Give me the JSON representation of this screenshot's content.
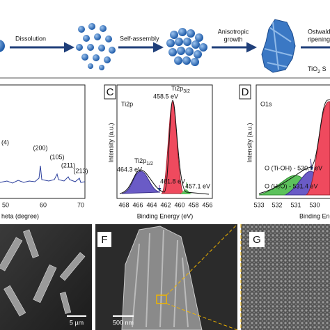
{
  "schematic": {
    "steps": [
      "Dissolution",
      "Self-assembly",
      [
        "Anisotropic",
        "growth"
      ],
      [
        "Ostwald",
        "ripening"
      ]
    ],
    "product": {
      "main": "TiO",
      "sub": "2",
      "rest": " S"
    }
  },
  "xrd": {
    "peaks": [
      "(4)",
      "(200)",
      "(105)",
      "(211)",
      "(213)"
    ],
    "xticks": [
      "50",
      "60",
      "70"
    ],
    "xlabel": "heta (degree)"
  },
  "ti2p": {
    "panel": "C",
    "title": "Ti2p",
    "peak_main": {
      "main": "Ti2p",
      "sub": "3/2"
    },
    "peak_main_energy": "458.5 eV",
    "peak_second": {
      "main": "Ti2p",
      "sub": "1/2"
    },
    "peak_second_energy": "464.3 eV",
    "annotations": [
      "461.8 eV",
      "457.1 eV"
    ],
    "ylabel": "Intensity (a.u.)",
    "xticks": [
      "468",
      "466",
      "464",
      "462",
      "460",
      "458",
      "456"
    ],
    "xlabel": "Binding Energy (eV)"
  },
  "o1s": {
    "panel": "D",
    "title": "O1s",
    "annotations": [
      "O (Ti-OH) - 530.7 eV",
      "O (H₂O) - 531.4 eV"
    ],
    "ylabel": "Intensity (a.u.)",
    "xticks": [
      "533",
      "532",
      "531",
      "530"
    ],
    "xlabel": "Binding Ene"
  },
  "sem": {
    "panels": [
      "F",
      "G"
    ],
    "scale_bars": [
      "5 µm",
      "500 nm"
    ]
  }
}
